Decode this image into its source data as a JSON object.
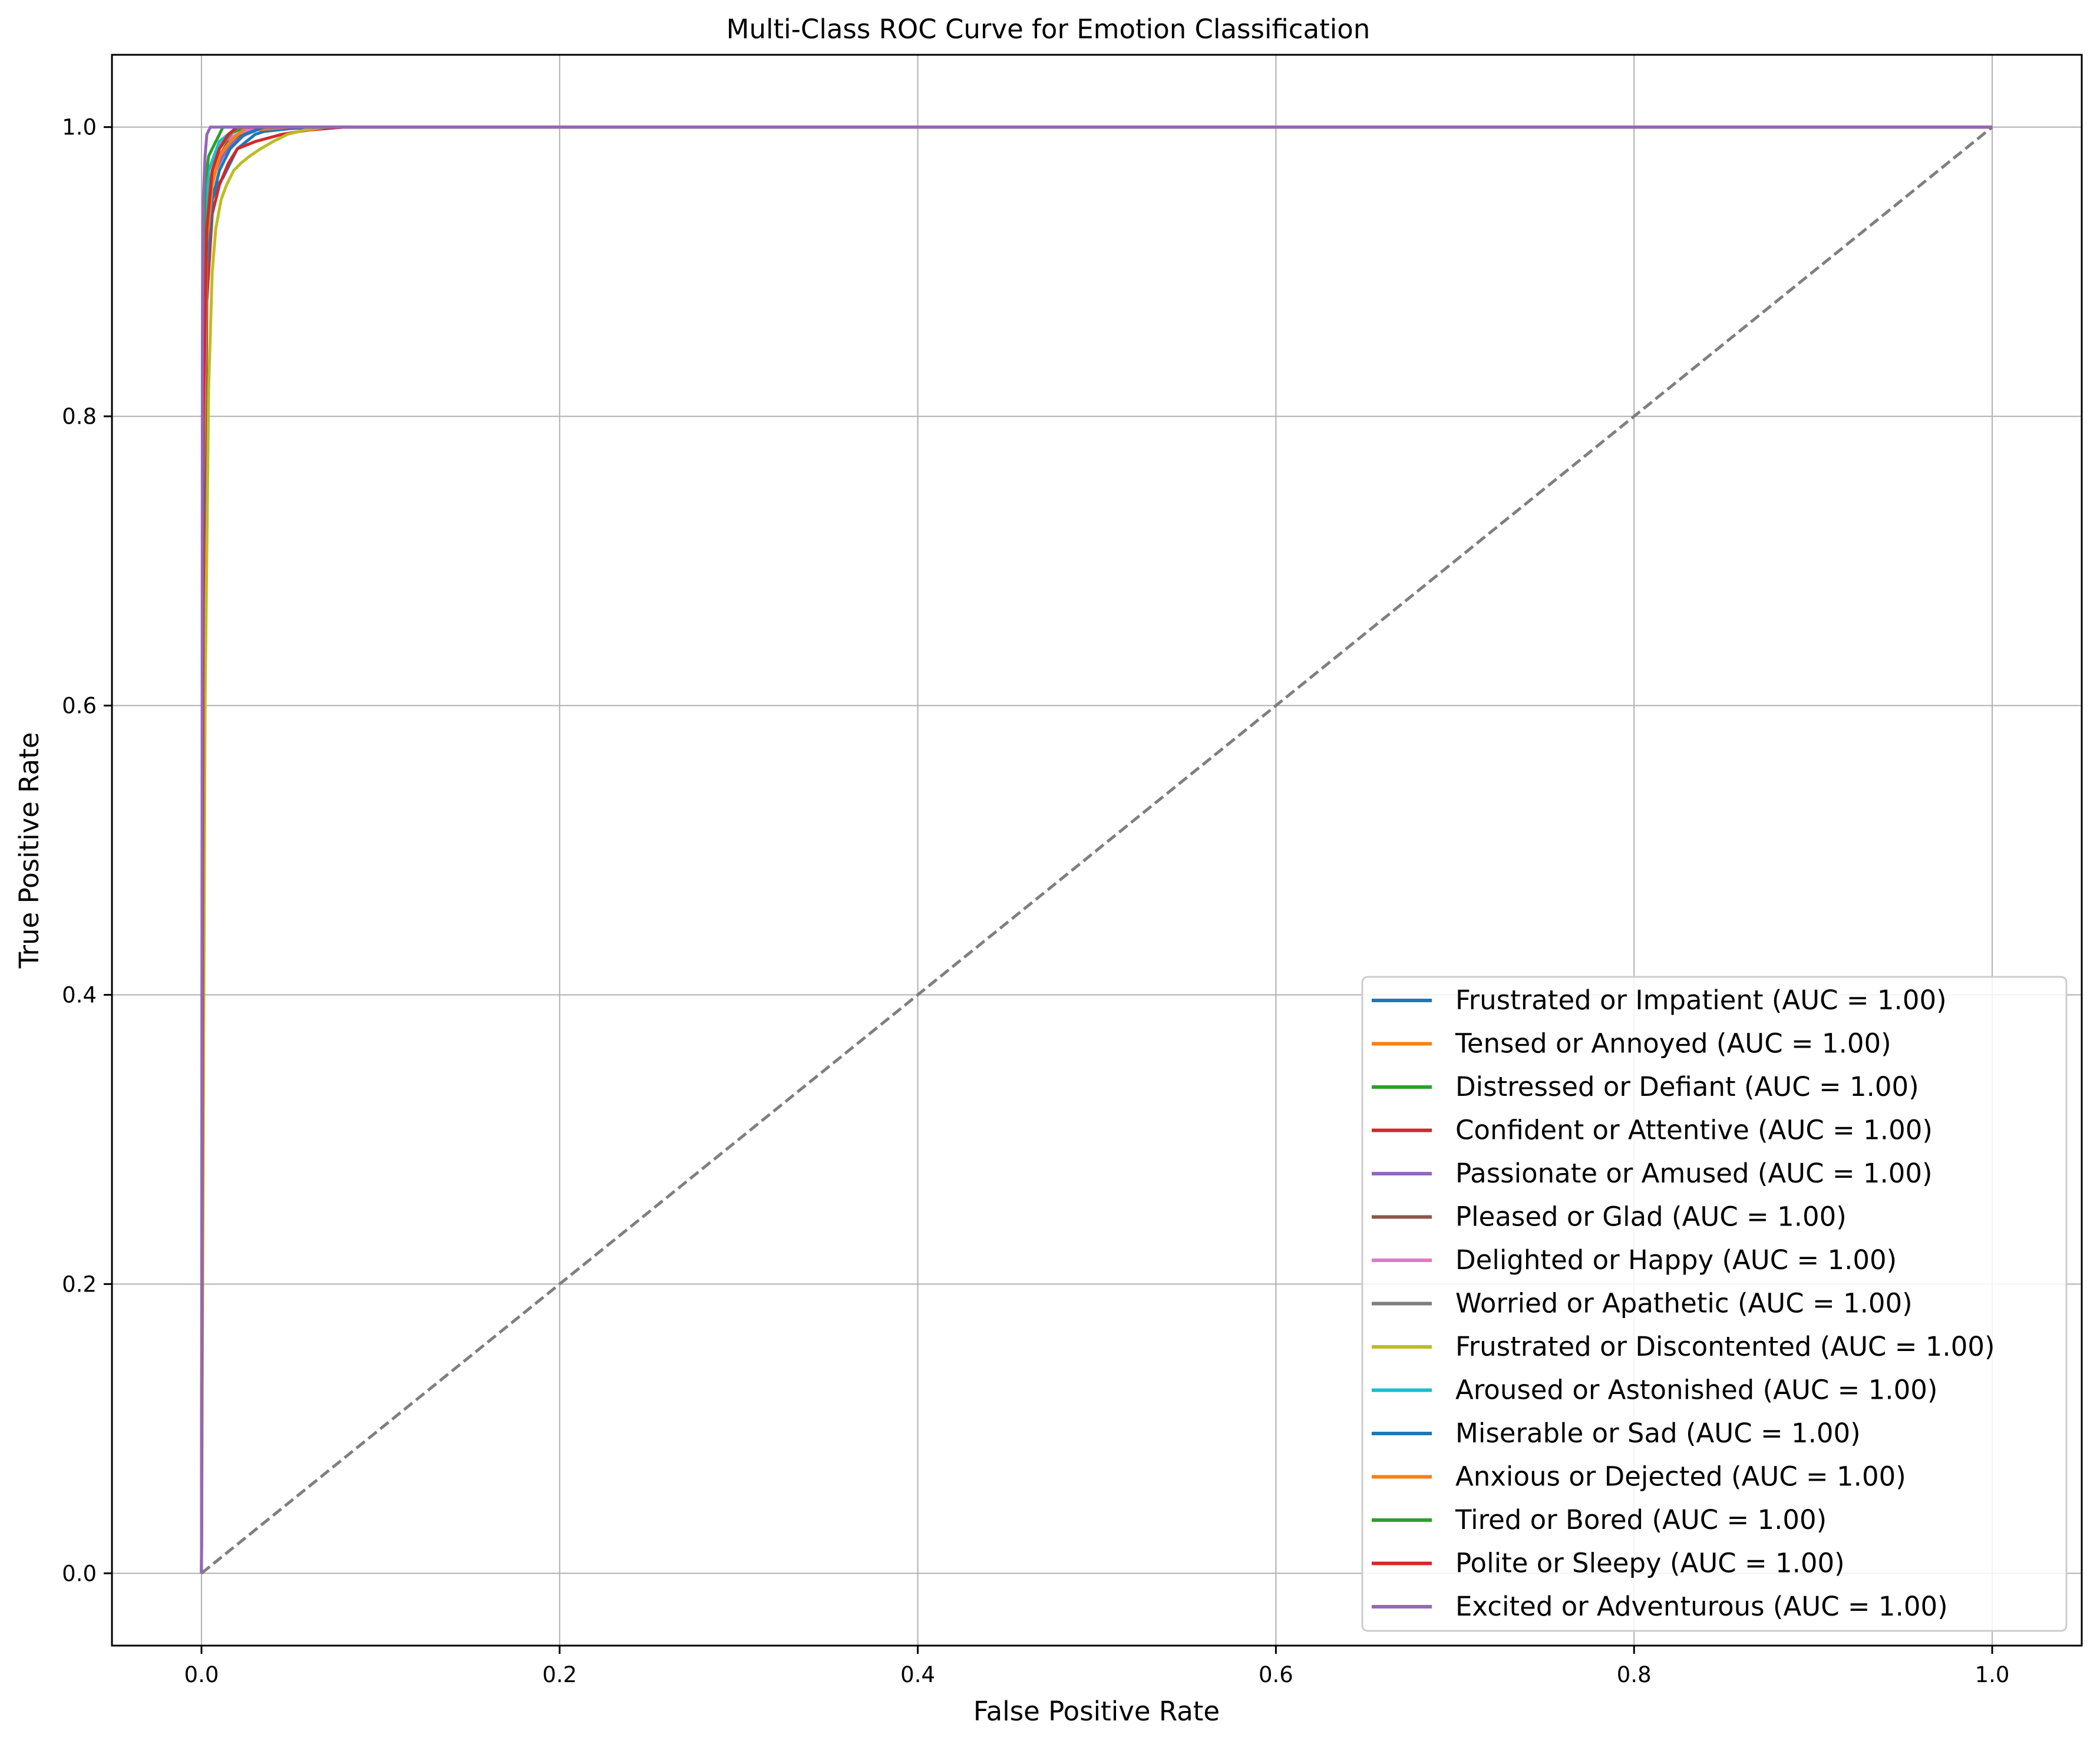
{
  "chart_data": {
    "type": "line",
    "title": "Multi-Class ROC Curve for Emotion Classification",
    "xlabel": "False Positive Rate",
    "ylabel": "True Positive Rate",
    "xlim": [
      -0.05,
      1.05
    ],
    "ylim": [
      -0.05,
      1.05
    ],
    "xticks": [
      0.0,
      0.2,
      0.4,
      0.6,
      0.8,
      1.0
    ],
    "yticks": [
      0.0,
      0.2,
      0.4,
      0.6,
      0.8,
      1.0
    ],
    "xtick_labels": [
      "0.0",
      "0.2",
      "0.4",
      "0.6",
      "0.8",
      "1.0"
    ],
    "ytick_labels": [
      "0.0",
      "0.2",
      "0.4",
      "0.6",
      "0.8",
      "1.0"
    ],
    "grid": true,
    "legend_position": "lower-right",
    "diagonal": {
      "x": [
        0,
        1
      ],
      "y": [
        0,
        1
      ],
      "color": "#7f7f7f",
      "style": "dashed"
    },
    "series": [
      {
        "name": "Frustrated or Impatient (AUC = 1.00)",
        "color": "#1f77b4",
        "x": [
          0,
          0.001,
          0.002,
          0.004,
          0.006,
          0.009,
          0.012,
          0.016,
          0.02,
          0.025,
          0.03,
          0.035,
          0.05,
          0.08,
          1.0
        ],
        "y": [
          0,
          0.55,
          0.85,
          0.92,
          0.95,
          0.96,
          0.965,
          0.975,
          0.985,
          0.99,
          0.995,
          0.997,
          0.999,
          1.0,
          1.0
        ]
      },
      {
        "name": "Tensed or Annoyed (AUC = 1.00)",
        "color": "#ff7f0e",
        "x": [
          0,
          0.001,
          0.002,
          0.004,
          0.007,
          0.01,
          0.015,
          0.02,
          0.03,
          0.05,
          1.0
        ],
        "y": [
          0,
          0.7,
          0.9,
          0.95,
          0.97,
          0.98,
          0.99,
          0.995,
          0.998,
          1.0,
          1.0
        ]
      },
      {
        "name": "Distressed or Defiant (AUC = 1.00)",
        "color": "#2ca02c",
        "x": [
          0,
          0.001,
          0.002,
          0.004,
          0.007,
          0.01,
          0.015,
          0.025,
          1.0
        ],
        "y": [
          0,
          0.8,
          0.95,
          0.97,
          0.98,
          0.99,
          0.995,
          1.0,
          1.0
        ]
      },
      {
        "name": "Confident or Attentive (AUC = 1.00)",
        "color": "#d62728",
        "x": [
          0,
          0.001,
          0.003,
          0.006,
          0.01,
          0.015,
          0.02,
          0.03,
          0.045,
          0.06,
          0.08,
          1.0
        ],
        "y": [
          0,
          0.6,
          0.88,
          0.94,
          0.96,
          0.975,
          0.985,
          0.99,
          0.995,
          0.998,
          1.0,
          1.0
        ]
      },
      {
        "name": "Passionate or Amused (AUC = 1.00)",
        "color": "#9467bd",
        "x": [
          0,
          0.001,
          0.002,
          0.004,
          0.008,
          0.012,
          0.018,
          0.025,
          0.035,
          1.0
        ],
        "y": [
          0,
          0.75,
          0.9,
          0.95,
          0.97,
          0.98,
          0.99,
          0.995,
          1.0,
          1.0
        ]
      },
      {
        "name": "Pleased or Glad (AUC = 1.00)",
        "color": "#8c564b",
        "x": [
          0,
          0.001,
          0.003,
          0.006,
          0.01,
          0.015,
          0.022,
          0.03,
          1.0
        ],
        "y": [
          0,
          0.7,
          0.92,
          0.96,
          0.98,
          0.99,
          0.995,
          1.0,
          1.0
        ]
      },
      {
        "name": "Delighted or Happy (AUC = 1.00)",
        "color": "#e377c2",
        "x": [
          0,
          0.001,
          0.002,
          0.005,
          0.008,
          0.012,
          0.02,
          0.03,
          1.0
        ],
        "y": [
          0,
          0.8,
          0.93,
          0.96,
          0.98,
          0.99,
          0.995,
          1.0,
          1.0
        ]
      },
      {
        "name": "Worried or Apathetic (AUC = 1.00)",
        "color": "#7f7f7f",
        "x": [
          0,
          0.001,
          0.003,
          0.006,
          0.01,
          0.015,
          0.02,
          1.0
        ],
        "y": [
          0,
          0.85,
          0.95,
          0.97,
          0.985,
          0.993,
          1.0,
          1.0
        ]
      },
      {
        "name": "Frustrated or Discontented (AUC = 1.00)",
        "color": "#bcbd22",
        "x": [
          0,
          0.002,
          0.004,
          0.006,
          0.008,
          0.011,
          0.014,
          0.018,
          0.022,
          0.027,
          0.033,
          0.04,
          0.048,
          0.058,
          0.07,
          1.0
        ],
        "y": [
          0,
          0.6,
          0.82,
          0.9,
          0.93,
          0.95,
          0.96,
          0.97,
          0.975,
          0.98,
          0.985,
          0.99,
          0.995,
          0.998,
          1.0,
          1.0
        ]
      },
      {
        "name": "Aroused or Astonished (AUC = 1.00)",
        "color": "#17becf",
        "x": [
          0,
          0.001,
          0.002,
          0.004,
          0.007,
          0.01,
          0.015,
          0.02,
          1.0
        ],
        "y": [
          0,
          0.8,
          0.94,
          0.97,
          0.98,
          0.99,
          0.995,
          1.0,
          1.0
        ]
      },
      {
        "name": "Miserable or Sad (AUC = 1.00)",
        "color": "#1f77b4",
        "x": [
          0,
          0.001,
          0.003,
          0.006,
          0.01,
          0.016,
          0.024,
          0.035,
          1.0
        ],
        "y": [
          0,
          0.7,
          0.9,
          0.95,
          0.97,
          0.985,
          0.995,
          1.0,
          1.0
        ]
      },
      {
        "name": "Anxious or Dejected (AUC = 1.00)",
        "color": "#ff7f0e",
        "x": [
          0,
          0.001,
          0.003,
          0.006,
          0.01,
          0.016,
          0.025,
          1.0
        ],
        "y": [
          0,
          0.75,
          0.92,
          0.96,
          0.98,
          0.99,
          1.0,
          1.0
        ]
      },
      {
        "name": "Tired or Bored (AUC = 1.00)",
        "color": "#2ca02c",
        "x": [
          0,
          0.001,
          0.002,
          0.004,
          0.008,
          0.012,
          1.0
        ],
        "y": [
          0,
          0.9,
          0.96,
          0.98,
          0.99,
          1.0,
          1.0
        ]
      },
      {
        "name": "Polite or Sleepy (AUC = 1.00)",
        "color": "#d62728",
        "x": [
          0,
          0.001,
          0.003,
          0.006,
          0.01,
          0.015,
          0.02,
          1.0
        ],
        "y": [
          0,
          0.8,
          0.93,
          0.97,
          0.985,
          0.995,
          1.0,
          1.0
        ]
      },
      {
        "name": "Excited or Adventurous (AUC = 1.00)",
        "color": "#9467bd",
        "x": [
          0,
          0.0005,
          0.001,
          0.002,
          0.003,
          0.005,
          1.0
        ],
        "y": [
          0,
          0.85,
          0.95,
          0.98,
          0.995,
          1.0,
          1.0
        ]
      }
    ]
  }
}
